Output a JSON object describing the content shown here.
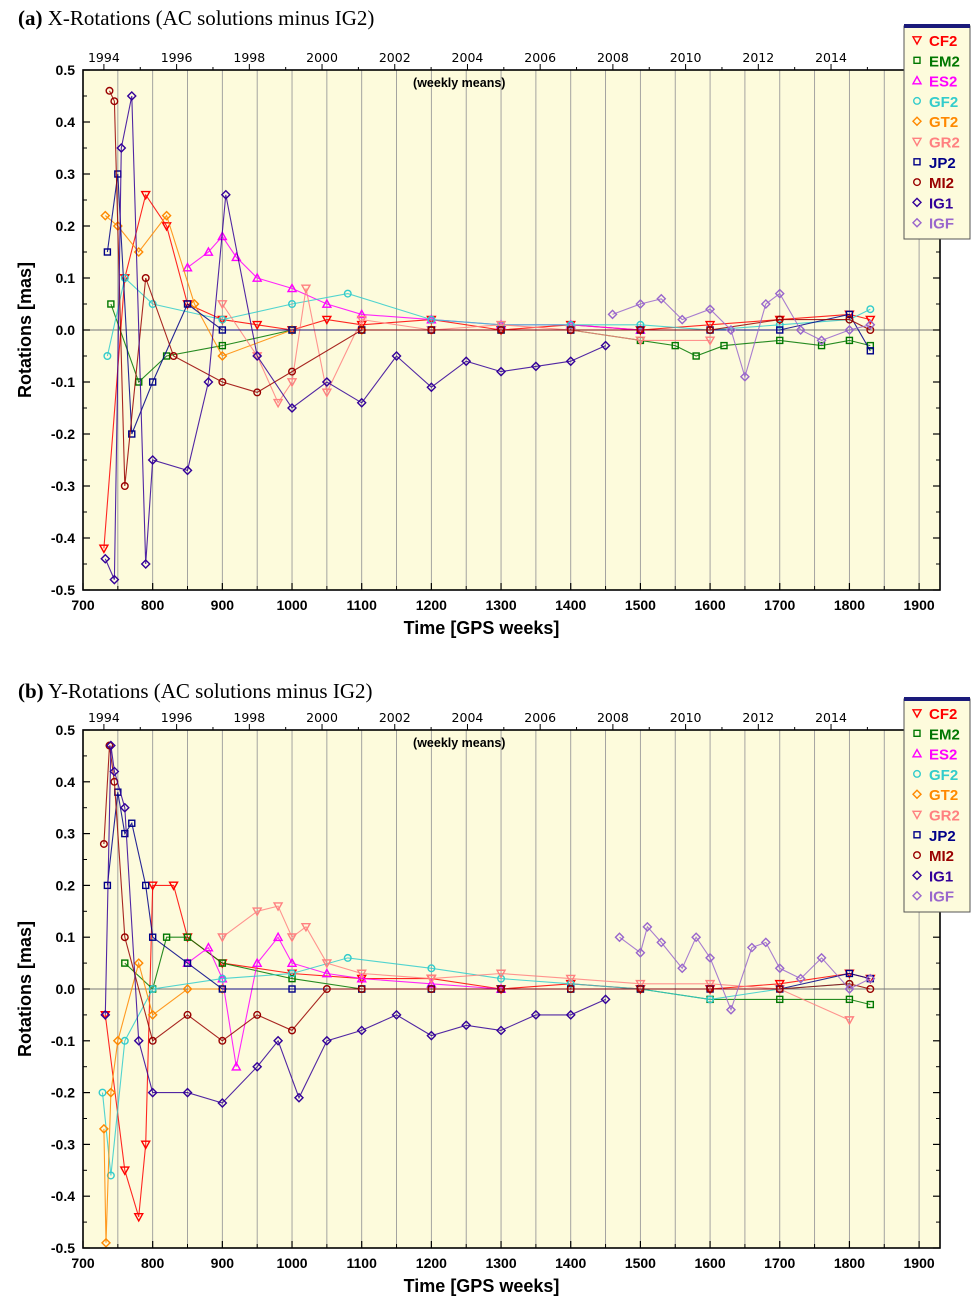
{
  "chart_data": [
    {
      "type": "scatter",
      "panel_label": "(a)",
      "title": "X-Rotations (AC solutions minus IG2)",
      "annotation": "(weekly means)",
      "xlabel": "Time [GPS weeks]",
      "ylabel": "Rotations [mas]",
      "xlim": [
        700,
        1930
      ],
      "ylim": [
        -0.5,
        0.5
      ],
      "x_ticks": [
        "700",
        "800",
        "900",
        "1000",
        "1100",
        "1200",
        "1300",
        "1400",
        "1500",
        "1600",
        "1700",
        "1800",
        "1900"
      ],
      "y_ticks": [
        "0.5",
        "0.4",
        "0.3",
        "0.2",
        "0.1",
        "0.0",
        "-0.1",
        "-0.2",
        "-0.3",
        "-0.4",
        "-0.5"
      ],
      "top_axis_ticks": [
        "1994",
        "1996",
        "1998",
        "2000",
        "2002",
        "2004",
        "2006",
        "2008",
        "2010",
        "2012",
        "2014"
      ],
      "grid": "vertical",
      "legend_position": "right",
      "series": [
        {
          "name": "CF2",
          "color": "#ff0000",
          "marker": "triangle-down",
          "x": [
            730,
            760,
            790,
            820,
            850,
            900,
            950,
            1000,
            1050,
            1100,
            1200,
            1300,
            1400,
            1500,
            1600,
            1700,
            1800,
            1830
          ],
          "y": [
            -0.42,
            0.1,
            0.26,
            0.2,
            0.05,
            0.02,
            0.01,
            0.0,
            0.02,
            0.01,
            0.02,
            0.0,
            0.01,
            0.0,
            0.01,
            0.02,
            0.03,
            0.02
          ]
        },
        {
          "name": "EM2",
          "color": "#007700",
          "marker": "square",
          "x": [
            740,
            780,
            820,
            900,
            1000,
            1100,
            1200,
            1300,
            1400,
            1500,
            1550,
            1580,
            1620,
            1700,
            1760,
            1800,
            1830
          ],
          "y": [
            0.05,
            -0.1,
            -0.05,
            -0.03,
            0.0,
            0.0,
            0.0,
            0.0,
            0.0,
            -0.02,
            -0.03,
            -0.05,
            -0.03,
            -0.02,
            -0.03,
            -0.02,
            -0.03
          ]
        },
        {
          "name": "ES2",
          "color": "#ff00ff",
          "marker": "triangle-up",
          "x": [
            850,
            880,
            900,
            920,
            950,
            1000,
            1050,
            1100,
            1200,
            1300,
            1400,
            1500
          ],
          "y": [
            0.12,
            0.15,
            0.18,
            0.14,
            0.1,
            0.08,
            0.05,
            0.03,
            0.02,
            0.01,
            0.01,
            0.0
          ]
        },
        {
          "name": "GF2",
          "color": "#33cccc",
          "marker": "circle",
          "x": [
            735,
            760,
            800,
            900,
            1000,
            1080,
            1200,
            1300,
            1400,
            1500,
            1600,
            1700,
            1800,
            1830
          ],
          "y": [
            -0.05,
            0.1,
            0.05,
            0.02,
            0.05,
            0.07,
            0.02,
            0.01,
            0.01,
            0.01,
            0.0,
            0.01,
            0.02,
            0.04
          ]
        },
        {
          "name": "GT2",
          "color": "#ff8800",
          "marker": "diamond",
          "x": [
            732,
            750,
            780,
            820,
            860,
            900,
            1000,
            1100,
            1200
          ],
          "y": [
            0.22,
            0.2,
            0.15,
            0.22,
            0.05,
            -0.05,
            0.0,
            0.0,
            0.0
          ]
        },
        {
          "name": "GR2",
          "color": "#ff8080",
          "marker": "triangle-down",
          "x": [
            900,
            950,
            980,
            1000,
            1020,
            1050,
            1100,
            1200,
            1300,
            1400,
            1500,
            1600
          ],
          "y": [
            0.05,
            -0.05,
            -0.14,
            -0.1,
            0.08,
            -0.12,
            0.02,
            0.0,
            0.01,
            0.0,
            -0.02,
            -0.02
          ]
        },
        {
          "name": "JP2",
          "color": "#000088",
          "marker": "square",
          "x": [
            735,
            750,
            770,
            800,
            850,
            900,
            1000,
            1100,
            1200,
            1300,
            1400,
            1500,
            1600,
            1700,
            1800,
            1830
          ],
          "y": [
            0.15,
            0.3,
            -0.2,
            -0.1,
            0.05,
            0.0,
            0.0,
            0.0,
            0.0,
            0.0,
            0.0,
            0.0,
            0.0,
            0.0,
            0.03,
            -0.04
          ]
        },
        {
          "name": "MI2",
          "color": "#990000",
          "marker": "circle",
          "x": [
            738,
            745,
            760,
            790,
            830,
            900,
            950,
            1000,
            1100,
            1200,
            1300,
            1400,
            1500,
            1600,
            1700,
            1800,
            1830
          ],
          "y": [
            0.46,
            0.44,
            -0.3,
            0.1,
            -0.05,
            -0.1,
            -0.12,
            -0.08,
            0.0,
            0.0,
            0.0,
            0.0,
            0.0,
            0.0,
            0.02,
            0.02,
            0.0
          ]
        },
        {
          "name": "IG1",
          "color": "#330099",
          "marker": "diamond",
          "x": [
            732,
            745,
            755,
            770,
            790,
            800,
            850,
            880,
            905,
            950,
            1000,
            1050,
            1100,
            1150,
            1200,
            1250,
            1300,
            1350,
            1400,
            1450
          ],
          "y": [
            -0.44,
            -0.48,
            0.35,
            0.45,
            -0.45,
            -0.25,
            -0.27,
            -0.1,
            0.26,
            -0.05,
            -0.15,
            -0.1,
            -0.14,
            -0.05,
            -0.11,
            -0.06,
            -0.08,
            -0.07,
            -0.06,
            -0.03
          ]
        },
        {
          "name": "IGF",
          "color": "#9966cc",
          "marker": "diamond",
          "x": [
            1460,
            1500,
            1530,
            1560,
            1600,
            1630,
            1650,
            1680,
            1700,
            1730,
            1760,
            1800,
            1830
          ],
          "y": [
            0.03,
            0.05,
            0.06,
            0.02,
            0.04,
            0.0,
            -0.09,
            0.05,
            0.07,
            0.0,
            -0.02,
            0.0,
            0.01
          ]
        }
      ]
    },
    {
      "type": "scatter",
      "panel_label": "(b)",
      "title": "Y-Rotations (AC solutions minus IG2)",
      "annotation": "(weekly means)",
      "xlabel": "Time [GPS weeks]",
      "ylabel": "Rotations [mas]",
      "xlim": [
        700,
        1930
      ],
      "ylim": [
        -0.5,
        0.5
      ],
      "x_ticks": [
        "700",
        "800",
        "900",
        "1000",
        "1100",
        "1200",
        "1300",
        "1400",
        "1500",
        "1600",
        "1700",
        "1800",
        "1900"
      ],
      "y_ticks": [
        "0.5",
        "0.4",
        "0.3",
        "0.2",
        "0.1",
        "0.0",
        "-0.1",
        "-0.2",
        "-0.3",
        "-0.4",
        "-0.5"
      ],
      "top_axis_ticks": [
        "1994",
        "1996",
        "1998",
        "2000",
        "2002",
        "2004",
        "2006",
        "2008",
        "2010",
        "2012",
        "2014"
      ],
      "grid": "vertical",
      "legend_position": "right",
      "series": [
        {
          "name": "CF2",
          "color": "#ff0000",
          "marker": "triangle-down",
          "x": [
            732,
            760,
            780,
            790,
            800,
            830,
            850,
            900,
            1000,
            1100,
            1200,
            1300,
            1400,
            1500,
            1600,
            1700,
            1800,
            1830
          ],
          "y": [
            -0.05,
            -0.35,
            -0.44,
            -0.3,
            0.2,
            0.2,
            0.1,
            0.05,
            0.03,
            0.02,
            0.02,
            0.0,
            0.01,
            0.0,
            0.0,
            0.01,
            0.03,
            0.02
          ]
        },
        {
          "name": "EM2",
          "color": "#007700",
          "marker": "square",
          "x": [
            760,
            800,
            820,
            850,
            900,
            1000,
            1100,
            1200,
            1300,
            1400,
            1500,
            1600,
            1700,
            1800,
            1830
          ],
          "y": [
            0.05,
            0.0,
            0.1,
            0.1,
            0.05,
            0.02,
            0.0,
            0.0,
            0.0,
            0.0,
            0.0,
            -0.02,
            -0.02,
            -0.02,
            -0.03
          ]
        },
        {
          "name": "ES2",
          "color": "#ff00ff",
          "marker": "triangle-up",
          "x": [
            850,
            880,
            900,
            920,
            950,
            980,
            1000,
            1050,
            1100,
            1200,
            1300
          ],
          "y": [
            0.05,
            0.08,
            0.02,
            -0.15,
            0.05,
            0.1,
            0.05,
            0.03,
            0.02,
            0.01,
            0.0
          ]
        },
        {
          "name": "GF2",
          "color": "#33cccc",
          "marker": "circle",
          "x": [
            728,
            740,
            760,
            800,
            900,
            1000,
            1080,
            1200,
            1300,
            1400,
            1500,
            1600,
            1700,
            1800
          ],
          "y": [
            -0.2,
            -0.36,
            -0.1,
            0.0,
            0.02,
            0.03,
            0.06,
            0.04,
            0.02,
            0.01,
            0.0,
            -0.02,
            0.0,
            0.01
          ]
        },
        {
          "name": "GT2",
          "color": "#ff8800",
          "marker": "diamond",
          "x": [
            730,
            733,
            740,
            750,
            780,
            800,
            850,
            900
          ],
          "y": [
            -0.27,
            -0.49,
            -0.2,
            -0.1,
            0.05,
            -0.05,
            0.0,
            0.0
          ]
        },
        {
          "name": "GR2",
          "color": "#ff8080",
          "marker": "triangle-down",
          "x": [
            900,
            950,
            980,
            1000,
            1020,
            1050,
            1100,
            1200,
            1300,
            1400,
            1500,
            1600,
            1700,
            1800
          ],
          "y": [
            0.1,
            0.15,
            0.16,
            0.1,
            0.12,
            0.05,
            0.03,
            0.02,
            0.03,
            0.02,
            0.01,
            0.01,
            0.0,
            -0.06
          ]
        },
        {
          "name": "JP2",
          "color": "#000088",
          "marker": "square",
          "x": [
            735,
            750,
            760,
            770,
            790,
            800,
            850,
            900,
            1000,
            1100,
            1200,
            1300,
            1400,
            1500,
            1600,
            1700,
            1800,
            1830
          ],
          "y": [
            0.2,
            0.38,
            0.3,
            0.32,
            0.2,
            0.1,
            0.05,
            0.0,
            0.0,
            0.0,
            0.0,
            0.0,
            0.0,
            0.0,
            0.0,
            0.0,
            0.03,
            0.02
          ]
        },
        {
          "name": "MI2",
          "color": "#990000",
          "marker": "circle",
          "x": [
            730,
            738,
            745,
            760,
            800,
            850,
            900,
            950,
            1000,
            1050,
            1100,
            1200,
            1300,
            1400,
            1500,
            1600,
            1700,
            1800,
            1830
          ],
          "y": [
            0.28,
            0.47,
            0.4,
            0.1,
            -0.1,
            -0.05,
            -0.1,
            -0.05,
            -0.08,
            0.0,
            0.0,
            0.0,
            0.0,
            0.0,
            0.0,
            0.0,
            0.0,
            0.01,
            0.0
          ]
        },
        {
          "name": "IG1",
          "color": "#330099",
          "marker": "diamond",
          "x": [
            732,
            740,
            745,
            760,
            780,
            800,
            850,
            900,
            950,
            980,
            1010,
            1050,
            1100,
            1150,
            1200,
            1250,
            1300,
            1350,
            1400,
            1450
          ],
          "y": [
            -0.05,
            0.47,
            0.42,
            0.35,
            -0.1,
            -0.2,
            -0.2,
            -0.22,
            -0.15,
            -0.1,
            -0.21,
            -0.1,
            -0.08,
            -0.05,
            -0.09,
            -0.07,
            -0.08,
            -0.05,
            -0.05,
            -0.02
          ]
        },
        {
          "name": "IGF",
          "color": "#9966cc",
          "marker": "diamond",
          "x": [
            1470,
            1500,
            1510,
            1530,
            1560,
            1580,
            1600,
            1630,
            1660,
            1680,
            1700,
            1730,
            1760,
            1800,
            1830
          ],
          "y": [
            0.1,
            0.07,
            0.12,
            0.09,
            0.04,
            0.1,
            0.06,
            -0.04,
            0.08,
            0.09,
            0.04,
            0.02,
            0.06,
            0.0,
            0.02
          ]
        }
      ]
    }
  ]
}
